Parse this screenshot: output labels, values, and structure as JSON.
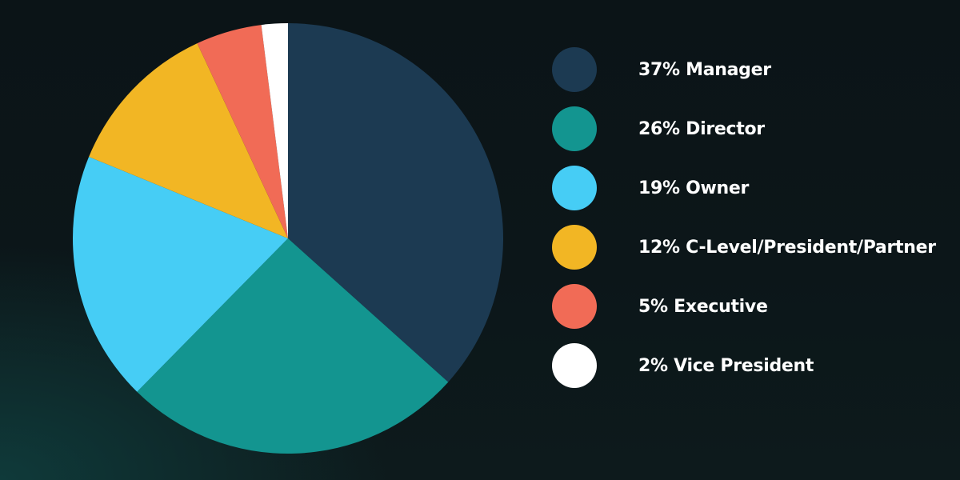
{
  "chart_data": {
    "type": "pie",
    "title": "",
    "slices": [
      {
        "label": "37% Manager",
        "value": 37,
        "color": "#1c3a52"
      },
      {
        "label": "26% Director",
        "value": 26,
        "color": "#139590"
      },
      {
        "label": "19% Owner",
        "value": 19,
        "color": "#46cdf5"
      },
      {
        "label": "12% C-Level/President/Partner",
        "value": 12,
        "color": "#f2b624"
      },
      {
        "label": "5% Executive",
        "value": 5,
        "color": "#f16b56"
      },
      {
        "label": "2% Vice President",
        "value": 2,
        "color": "#ffffff"
      }
    ],
    "legend_position": "right"
  }
}
